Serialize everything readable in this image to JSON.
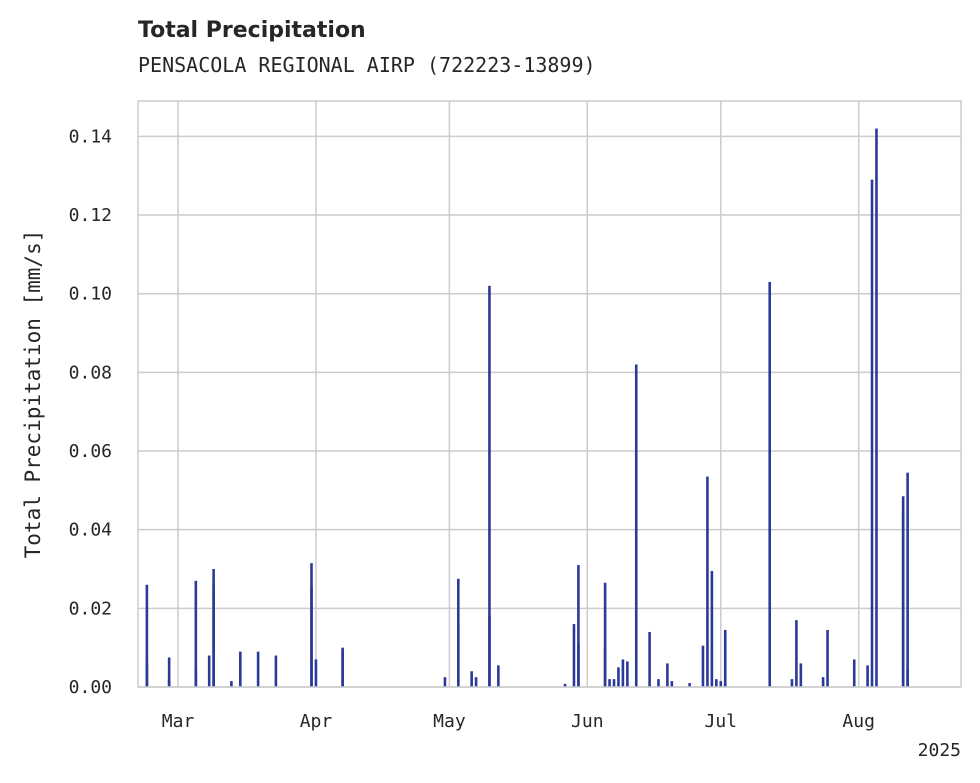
{
  "chart_data": {
    "type": "bar",
    "title": "Total Precipitation",
    "subtitle": "PENSACOLA REGIONAL AIRP (722223-13899)",
    "xlabel": "",
    "ylabel": "Total Precipitation [mm/s]",
    "year_label": "2025",
    "xlim": [
      "2025-02-20",
      "2025-08-24"
    ],
    "ylim": [
      0,
      0.149
    ],
    "yticks": [
      0.0,
      0.02,
      0.04,
      0.06,
      0.08,
      0.1,
      0.12,
      0.14
    ],
    "ytick_labels": [
      "0.00",
      "0.02",
      "0.04",
      "0.06",
      "0.08",
      "0.10",
      "0.12",
      "0.14"
    ],
    "xticks": [
      "2025-03-01",
      "2025-04-01",
      "2025-05-01",
      "2025-06-01",
      "2025-07-01",
      "2025-08-01"
    ],
    "xtick_labels": [
      "Mar",
      "Apr",
      "May",
      "Jun",
      "Jul",
      "Aug"
    ],
    "grid": true,
    "bar_color": "#2b3a9a",
    "x": [
      "2025-02-22",
      "2025-02-22",
      "2025-02-27",
      "2025-02-27",
      "2025-03-05",
      "2025-03-05",
      "2025-03-08",
      "2025-03-09",
      "2025-03-09",
      "2025-03-13",
      "2025-03-15",
      "2025-03-19",
      "2025-03-23",
      "2025-03-31",
      "2025-03-31",
      "2025-04-01",
      "2025-04-07",
      "2025-04-07",
      "2025-04-30",
      "2025-05-03",
      "2025-05-03",
      "2025-05-06",
      "2025-05-07",
      "2025-05-10",
      "2025-05-10",
      "2025-05-12",
      "2025-05-27",
      "2025-05-29",
      "2025-05-30",
      "2025-05-30",
      "2025-06-05",
      "2025-06-05",
      "2025-06-06",
      "2025-06-07",
      "2025-06-08",
      "2025-06-09",
      "2025-06-10",
      "2025-06-12",
      "2025-06-15",
      "2025-06-17",
      "2025-06-19",
      "2025-06-20",
      "2025-06-24",
      "2025-06-27",
      "2025-06-28",
      "2025-06-29",
      "2025-06-30",
      "2025-07-01",
      "2025-07-02",
      "2025-07-12",
      "2025-07-17",
      "2025-07-18",
      "2025-07-19",
      "2025-07-24",
      "2025-07-25",
      "2025-07-31",
      "2025-08-03",
      "2025-08-04",
      "2025-08-05",
      "2025-08-11",
      "2025-08-11",
      "2025-08-12",
      "2025-08-12"
    ],
    "values": [
      0.026,
      0.006,
      0.0075,
      0.002,
      0.027,
      0.0045,
      0.008,
      0.026,
      0.03,
      0.0015,
      0.009,
      0.009,
      0.008,
      0.0255,
      0.0315,
      0.007,
      0.009,
      0.01,
      0.0025,
      0.0155,
      0.0275,
      0.004,
      0.0025,
      0.102,
      0.018,
      0.0055,
      0.0008,
      0.016,
      0.031,
      0.011,
      0.0265,
      0.01,
      0.002,
      0.002,
      0.005,
      0.007,
      0.0065,
      0.082,
      0.014,
      0.002,
      0.006,
      0.0015,
      0.001,
      0.0105,
      0.0535,
      0.0295,
      0.002,
      0.0015,
      0.0145,
      0.103,
      0.002,
      0.017,
      0.006,
      0.0025,
      0.0145,
      0.007,
      0.0055,
      0.129,
      0.142,
      0.045,
      0.0485,
      0.0545,
      0.0045
    ]
  }
}
